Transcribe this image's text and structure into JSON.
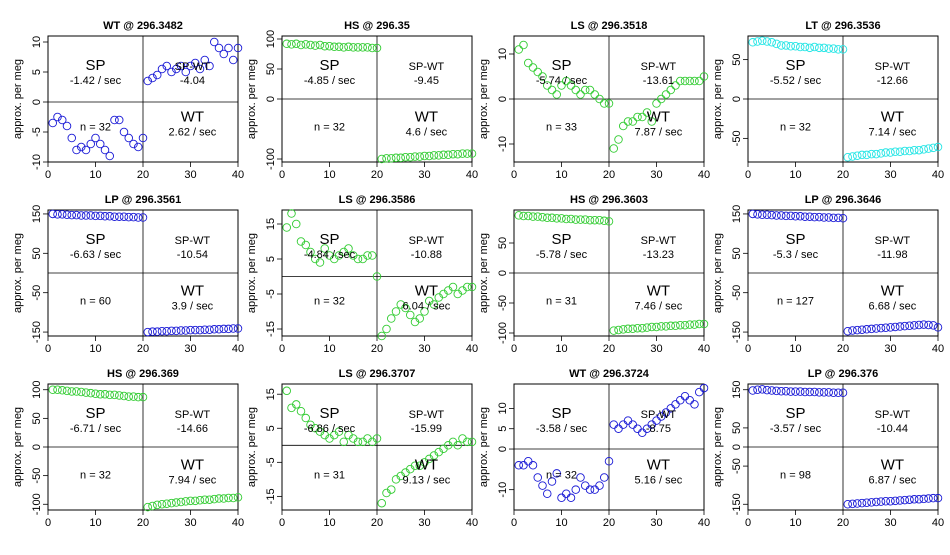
{
  "ylabel": "approx. per meg",
  "colors": {
    "blue": "#1a1ad6",
    "green": "#33cc33",
    "cyan": "#22e5e5",
    "axis": "#000000"
  },
  "chart_data": [
    {
      "type": "scatter",
      "title": "WT @ 296.3482",
      "color": "blue",
      "xlim": [
        0,
        40
      ],
      "ylim": [
        -10,
        11
      ],
      "xticks": [
        0,
        10,
        20,
        30,
        40
      ],
      "yticks": [
        -10,
        -5,
        0,
        5,
        10
      ],
      "n": "n = 32",
      "sp_label": "SP",
      "sp_rate": "-1.42 / sec",
      "spwt_label": "SP-WT",
      "spwt_rate": "-4.04",
      "wt_label": "WT",
      "wt_rate": "2.62 / sec",
      "x": [
        1,
        2,
        3,
        4,
        5,
        6,
        7,
        8,
        9,
        10,
        11,
        12,
        13,
        14,
        15,
        16,
        17,
        18,
        19,
        20,
        21,
        22,
        23,
        24,
        25,
        26,
        27,
        28,
        29,
        30,
        31,
        32,
        33,
        34,
        35,
        36,
        37,
        38,
        39,
        40
      ],
      "y": [
        -3.5,
        -2.5,
        -3,
        -4,
        -6,
        -8,
        -7.5,
        -8,
        -7,
        -6,
        -7,
        -8,
        -9,
        -3,
        -3,
        -5,
        -6,
        -7,
        -7.5,
        -6,
        3.5,
        4,
        4.5,
        5.5,
        6,
        5,
        5.5,
        6,
        5,
        6,
        6.5,
        5.5,
        7,
        6,
        10,
        9,
        8,
        9,
        7,
        9
      ]
    },
    {
      "type": "scatter",
      "title": "HS @ 296.35",
      "color": "green",
      "xlim": [
        0,
        40
      ],
      "ylim": [
        -105,
        105
      ],
      "xticks": [
        0,
        10,
        20,
        30,
        40
      ],
      "yticks": [
        -100,
        0,
        50,
        100
      ],
      "n": "n = 32",
      "sp_label": "SP",
      "sp_rate": "-4.85 / sec",
      "spwt_label": "SP-WT",
      "spwt_rate": "-9.45",
      "wt_label": "WT",
      "wt_rate": "4.6 / sec",
      "x": [
        1,
        2,
        3,
        4,
        5,
        6,
        7,
        8,
        9,
        10,
        11,
        12,
        13,
        14,
        15,
        16,
        17,
        18,
        19,
        20,
        21,
        22,
        23,
        24,
        25,
        26,
        27,
        28,
        29,
        30,
        31,
        32,
        33,
        34,
        35,
        36,
        37,
        38,
        39,
        40
      ],
      "y": [
        92,
        91,
        92,
        90,
        91,
        90,
        89,
        90,
        88,
        88,
        87,
        87,
        86,
        87,
        86,
        86,
        86,
        86,
        85,
        85,
        -100,
        -99,
        -99,
        -98,
        -98,
        -97,
        -97,
        -96,
        -96,
        -95,
        -95,
        -94,
        -94,
        -93,
        -93,
        -92,
        -92,
        -91,
        -91,
        -91
      ]
    },
    {
      "type": "scatter",
      "title": "LS @ 296.3518",
      "color": "green",
      "xlim": [
        0,
        40
      ],
      "ylim": [
        -14,
        14
      ],
      "xticks": [
        0,
        10,
        20,
        30,
        40
      ],
      "yticks": [
        -10,
        0,
        10
      ],
      "n": "n = 33",
      "sp_label": "SP",
      "sp_rate": "-5.74 / sec",
      "spwt_label": "SP-WT",
      "spwt_rate": "-13.61",
      "wt_label": "WT",
      "wt_rate": "7.87 / sec",
      "x": [
        1,
        2,
        3,
        4,
        5,
        6,
        7,
        8,
        9,
        10,
        11,
        12,
        13,
        14,
        15,
        16,
        17,
        18,
        19,
        20,
        21,
        22,
        23,
        24,
        25,
        26,
        27,
        28,
        29,
        30,
        31,
        32,
        33,
        34,
        35,
        36,
        37,
        38,
        39,
        40
      ],
      "y": [
        11,
        12,
        8,
        7,
        6,
        5,
        3,
        2,
        1,
        3,
        4,
        3,
        2,
        1,
        2,
        2,
        1,
        0,
        -1,
        -1,
        -11,
        -9,
        -6,
        -5,
        -5,
        -4,
        -4,
        -3,
        -5,
        -1,
        0,
        1,
        2,
        3,
        4,
        4,
        4,
        4,
        4,
        5
      ]
    },
    {
      "type": "scatter",
      "title": "LT @ 296.3536",
      "color": "cyan",
      "xlim": [
        0,
        40
      ],
      "ylim": [
        -80,
        80
      ],
      "xticks": [
        0,
        10,
        20,
        30,
        40
      ],
      "yticks": [
        -50,
        0,
        50
      ],
      "n": "n = 32",
      "sp_label": "SP",
      "sp_rate": "-5.52 / sec",
      "spwt_label": "SP-WT",
      "spwt_rate": "-12.66",
      "wt_label": "WT",
      "wt_rate": "7.14 / sec",
      "x": [
        1,
        2,
        3,
        4,
        5,
        6,
        7,
        8,
        9,
        10,
        11,
        12,
        13,
        14,
        15,
        16,
        17,
        18,
        19,
        20,
        21,
        22,
        23,
        24,
        25,
        26,
        27,
        28,
        29,
        30,
        31,
        32,
        33,
        34,
        35,
        36,
        37,
        38,
        39,
        40
      ],
      "y": [
        72,
        73,
        74,
        73,
        72,
        70,
        68,
        68,
        67,
        67,
        66,
        66,
        65,
        66,
        65,
        65,
        64,
        64,
        63,
        63,
        -74,
        -73,
        -72,
        -71,
        -71,
        -70,
        -70,
        -69,
        -68,
        -68,
        -67,
        -67,
        -66,
        -66,
        -65,
        -65,
        -64,
        -63,
        -62,
        -61
      ]
    },
    {
      "type": "scatter",
      "title": "LP @ 296.3561",
      "color": "blue",
      "xlim": [
        0,
        40
      ],
      "ylim": [
        -160,
        160
      ],
      "xticks": [
        0,
        10,
        20,
        30,
        40
      ],
      "yticks": [
        -150,
        -50,
        50,
        150
      ],
      "n": "n = 60",
      "sp_label": "SP",
      "sp_rate": "-6.63 / sec",
      "spwt_label": "SP-WT",
      "spwt_rate": "-10.54",
      "wt_label": "WT",
      "wt_rate": "3.9 / sec",
      "x": [
        1,
        2,
        3,
        4,
        5,
        6,
        7,
        8,
        9,
        10,
        11,
        12,
        13,
        14,
        15,
        16,
        17,
        18,
        19,
        20,
        21,
        22,
        23,
        24,
        25,
        26,
        27,
        28,
        29,
        30,
        31,
        32,
        33,
        34,
        35,
        36,
        37,
        38,
        39,
        40
      ],
      "y": [
        150,
        149,
        149,
        148,
        147,
        147,
        146,
        146,
        146,
        145,
        145,
        144,
        144,
        143,
        143,
        143,
        142,
        142,
        141,
        141,
        -150,
        -149,
        -149,
        -148,
        -148,
        -147,
        -147,
        -146,
        -146,
        -145,
        -145,
        -145,
        -144,
        -144,
        -143,
        -143,
        -142,
        -142,
        -141,
        -141
      ]
    },
    {
      "type": "scatter",
      "title": "LS @ 296.3586",
      "color": "green",
      "xlim": [
        0,
        40
      ],
      "ylim": [
        -17,
        19
      ],
      "xticks": [
        0,
        10,
        20,
        30,
        40
      ],
      "yticks": [
        -15,
        -5,
        5,
        15
      ],
      "n": "n = 32",
      "sp_label": "SP",
      "sp_rate": "-4.84 / sec",
      "spwt_label": "SP-WT",
      "spwt_rate": "-10.88",
      "wt_label": "WT",
      "wt_rate": "6.04 / sec",
      "x": [
        1,
        2,
        3,
        4,
        5,
        6,
        7,
        8,
        9,
        10,
        11,
        12,
        13,
        14,
        15,
        16,
        17,
        18,
        19,
        20,
        21,
        22,
        23,
        24,
        25,
        26,
        27,
        28,
        29,
        30,
        31,
        32,
        33,
        34,
        35,
        36,
        37,
        38,
        39,
        40
      ],
      "y": [
        14,
        18,
        15,
        10,
        9,
        7,
        5,
        4,
        8,
        6,
        5,
        6,
        7,
        8,
        6,
        5,
        5,
        6,
        6,
        0,
        -17,
        -15,
        -12,
        -10,
        -8,
        -9,
        -11,
        -13,
        -12,
        -10,
        -7,
        -8,
        -6,
        -5,
        -4,
        -3,
        -5,
        -4,
        -3,
        -3
      ]
    },
    {
      "type": "scatter",
      "title": "HS @ 296.3603",
      "color": "green",
      "xlim": [
        0,
        40
      ],
      "ylim": [
        -105,
        105
      ],
      "xticks": [
        0,
        10,
        20,
        30,
        40
      ],
      "yticks": [
        -100,
        -50,
        0,
        50
      ],
      "n": "n = 31",
      "sp_label": "SP",
      "sp_rate": "-5.78 / sec",
      "spwt_label": "SP-WT",
      "spwt_rate": "-13.23",
      "wt_label": "WT",
      "wt_rate": "7.46 / sec",
      "x": [
        1,
        2,
        3,
        4,
        5,
        6,
        7,
        8,
        9,
        10,
        11,
        12,
        13,
        14,
        15,
        16,
        17,
        18,
        19,
        20,
        21,
        22,
        23,
        24,
        25,
        26,
        27,
        28,
        29,
        30,
        31,
        32,
        33,
        34,
        35,
        36,
        37,
        38,
        39,
        40
      ],
      "y": [
        96,
        95,
        95,
        94,
        94,
        93,
        92,
        92,
        91,
        91,
        90,
        90,
        89,
        89,
        89,
        88,
        88,
        88,
        87,
        86,
        -96,
        -95,
        -94,
        -93,
        -93,
        -92,
        -92,
        -91,
        -90,
        -90,
        -89,
        -89,
        -88,
        -88,
        -87,
        -87,
        -86,
        -86,
        -85,
        -85
      ]
    },
    {
      "type": "scatter",
      "title": "LP @ 296.3646",
      "color": "blue",
      "xlim": [
        0,
        40
      ],
      "ylim": [
        -160,
        160
      ],
      "xticks": [
        0,
        10,
        20,
        30,
        40
      ],
      "yticks": [
        -150,
        -50,
        50,
        150
      ],
      "n": "n = 127",
      "sp_label": "SP",
      "sp_rate": "-5.3 / sec",
      "spwt_label": "SP-WT",
      "spwt_rate": "-11.98",
      "wt_label": "WT",
      "wt_rate": "6.68 / sec",
      "x": [
        1,
        2,
        3,
        4,
        5,
        6,
        7,
        8,
        9,
        10,
        11,
        12,
        13,
        14,
        15,
        16,
        17,
        18,
        19,
        20,
        21,
        22,
        23,
        24,
        25,
        26,
        27,
        28,
        29,
        30,
        31,
        32,
        33,
        34,
        35,
        36,
        37,
        38,
        39,
        40
      ],
      "y": [
        150,
        149,
        148,
        148,
        147,
        146,
        146,
        145,
        145,
        144,
        144,
        143,
        143,
        142,
        142,
        141,
        141,
        140,
        140,
        139,
        -148,
        -146,
        -145,
        -144,
        -143,
        -142,
        -141,
        -140,
        -139,
        -138,
        -137,
        -136,
        -135,
        -134,
        -133,
        -132,
        -131,
        -132,
        -133,
        -138
      ]
    },
    {
      "type": "scatter",
      "title": "HS @ 296.369",
      "color": "green",
      "xlim": [
        0,
        40
      ],
      "ylim": [
        -110,
        110
      ],
      "xticks": [
        0,
        10,
        20,
        30,
        40
      ],
      "yticks": [
        -100,
        -50,
        0,
        50,
        100
      ],
      "n": "n = 32",
      "sp_label": "SP",
      "sp_rate": "-6.71 / sec",
      "spwt_label": "SP-WT",
      "spwt_rate": "-14.66",
      "wt_label": "WT",
      "wt_rate": "7.94 / sec",
      "x": [
        1,
        2,
        3,
        4,
        5,
        6,
        7,
        8,
        9,
        10,
        11,
        12,
        13,
        14,
        15,
        16,
        17,
        18,
        19,
        20,
        21,
        22,
        23,
        24,
        25,
        26,
        27,
        28,
        29,
        30,
        31,
        32,
        33,
        34,
        35,
        36,
        37,
        38,
        39,
        40
      ],
      "y": [
        100,
        100,
        99,
        98,
        97,
        97,
        96,
        95,
        94,
        93,
        92,
        92,
        91,
        91,
        90,
        89,
        88,
        88,
        87,
        87,
        -105,
        -103,
        -101,
        -100,
        -99,
        -98,
        -97,
        -96,
        -95,
        -94,
        -94,
        -93,
        -92,
        -92,
        -91,
        -90,
        -90,
        -89,
        -89,
        -88
      ]
    },
    {
      "type": "scatter",
      "title": "LS @ 296.3707",
      "color": "green",
      "xlim": [
        0,
        40
      ],
      "ylim": [
        -19,
        18
      ],
      "xticks": [
        0,
        10,
        20,
        30,
        40
      ],
      "yticks": [
        -15,
        -5,
        5,
        15
      ],
      "n": "n = 31",
      "sp_label": "SP",
      "sp_rate": "-6.86 / sec",
      "spwt_label": "SP-WT",
      "spwt_rate": "-15.99",
      "wt_label": "WT",
      "wt_rate": "9.13 / sec",
      "x": [
        1,
        2,
        3,
        4,
        5,
        6,
        7,
        8,
        9,
        10,
        11,
        12,
        13,
        14,
        15,
        16,
        17,
        18,
        19,
        20,
        21,
        22,
        23,
        24,
        25,
        26,
        27,
        28,
        29,
        30,
        31,
        32,
        33,
        34,
        35,
        36,
        37,
        38,
        39,
        40
      ],
      "y": [
        16,
        11,
        12,
        10,
        8,
        6,
        5,
        4,
        3,
        2,
        3,
        4,
        1,
        3,
        2,
        1,
        1,
        2,
        1,
        2,
        -17,
        -14,
        -13,
        -10,
        -9,
        -8,
        -7,
        -6,
        -6,
        -5,
        -4,
        -3,
        -2,
        -1,
        0,
        1,
        0,
        2,
        1,
        1
      ]
    },
    {
      "type": "scatter",
      "title": "WT @ 296.3724",
      "color": "blue",
      "xlim": [
        0,
        40
      ],
      "ylim": [
        -15,
        16
      ],
      "xticks": [
        0,
        10,
        20,
        30,
        40
      ],
      "yticks": [
        -10,
        0,
        5,
        10
      ],
      "n": "n = 32",
      "sp_label": "SP",
      "sp_rate": "-3.58 / sec",
      "spwt_label": "SP-WT",
      "spwt_rate": "-8.75",
      "wt_label": "WT",
      "wt_rate": "5.16 / sec",
      "x": [
        1,
        2,
        3,
        4,
        5,
        6,
        7,
        8,
        9,
        10,
        11,
        12,
        13,
        14,
        15,
        16,
        17,
        18,
        19,
        20,
        21,
        22,
        23,
        24,
        25,
        26,
        27,
        28,
        29,
        30,
        31,
        32,
        33,
        34,
        35,
        36,
        37,
        38,
        39,
        40
      ],
      "y": [
        -4,
        -4,
        -3,
        -4,
        -7,
        -9,
        -11,
        -8,
        -6,
        -12,
        -11,
        -12,
        -10,
        -7,
        -9,
        -10,
        -10,
        -9,
        -7,
        -3,
        6,
        5,
        6,
        7,
        6,
        5,
        4,
        5,
        6,
        7,
        8,
        9,
        10,
        11,
        12,
        13,
        12,
        11,
        14,
        15
      ]
    },
    {
      "type": "scatter",
      "title": "LP @ 296.376",
      "color": "blue",
      "xlim": [
        0,
        40
      ],
      "ylim": [
        -165,
        165
      ],
      "xticks": [
        0,
        10,
        20,
        30,
        40
      ],
      "yticks": [
        -150,
        -50,
        0,
        50,
        150
      ],
      "n": "n = 98",
      "sp_label": "SP",
      "sp_rate": "-3.57 / sec",
      "spwt_label": "SP-WT",
      "spwt_rate": "-10.44",
      "wt_label": "WT",
      "wt_rate": "6.87 / sec",
      "x": [
        1,
        2,
        3,
        4,
        5,
        6,
        7,
        8,
        9,
        10,
        11,
        12,
        13,
        14,
        15,
        16,
        17,
        18,
        19,
        20,
        21,
        22,
        23,
        24,
        25,
        26,
        27,
        28,
        29,
        30,
        31,
        32,
        33,
        34,
        35,
        36,
        37,
        38,
        39,
        40
      ],
      "y": [
        148,
        150,
        151,
        149,
        148,
        147,
        146,
        146,
        145,
        145,
        145,
        144,
        144,
        144,
        143,
        143,
        143,
        142,
        142,
        142,
        -150,
        -149,
        -148,
        -147,
        -146,
        -145,
        -144,
        -143,
        -142,
        -142,
        -141,
        -140,
        -139,
        -138,
        -137,
        -137,
        -136,
        -135,
        -134,
        -134
      ]
    }
  ]
}
